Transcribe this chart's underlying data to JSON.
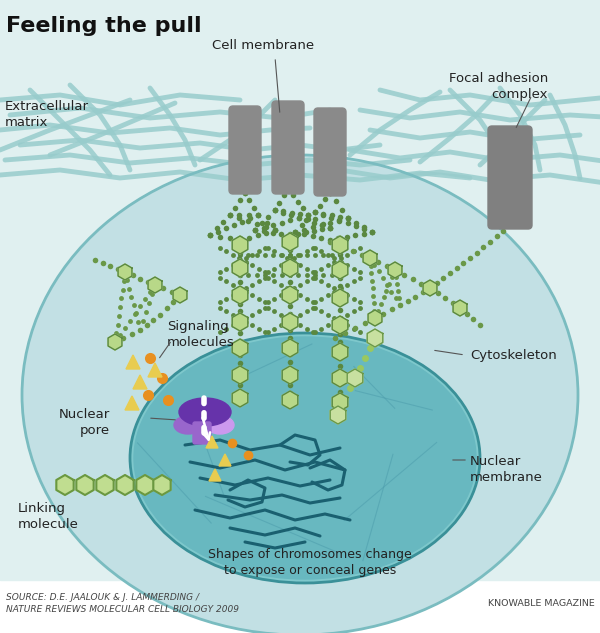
{
  "title": "Feeling the pull",
  "bg_color": "#ffffff",
  "ecm_bg": "#e8f5f5",
  "cell_color": "#b8dde0",
  "nucleus_color": "#7ec8cc",
  "nucleus_inner": "#5aabb5",
  "actin_color": "#5a8a3a",
  "actin_light": "#a0c870",
  "hex_color": "#a8cc78",
  "integrin_color": "#909090",
  "focal_color": "#808080",
  "nuclear_pore_dark": "#7744aa",
  "nuclear_pore_light": "#bb99dd",
  "signaling_orange": "#e89020",
  "signaling_yellow": "#e8cc60",
  "chromosome_color": "#1a6070",
  "ecm_line_color": "#98c8cc",
  "source_text": "SOURCE: D.E. JAALOUK & J. LAMMERDING /\nNATURE REVIEWS MOLECULAR CELL BIOLOGY 2009",
  "credit_text": "KNOWABLE MAGAZINE"
}
